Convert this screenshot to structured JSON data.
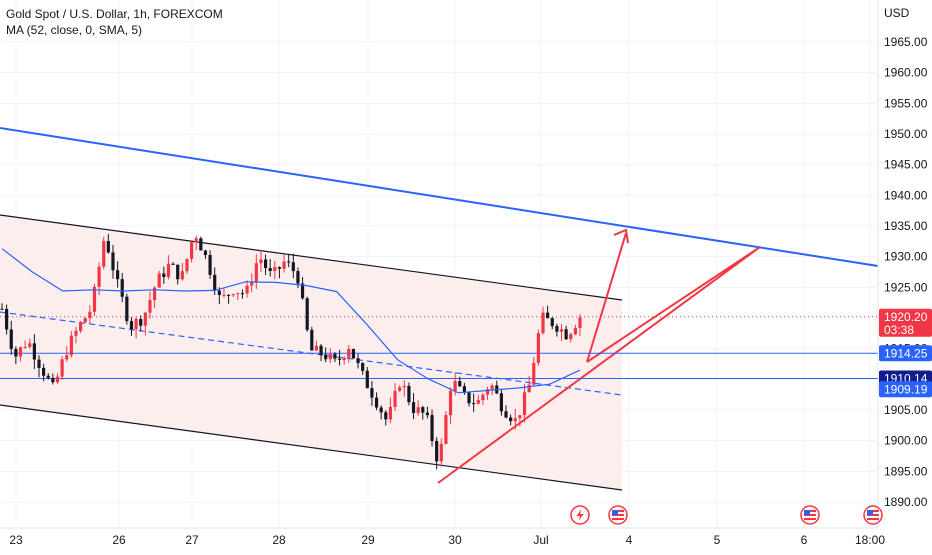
{
  "header": {
    "title": "Gold Spot / U.S. Dollar, 1h, FOREXCOM",
    "indicator": "MA (52, close, 0, SMA, 5)",
    "currency": "USD"
  },
  "colors": {
    "up": "#f23645",
    "down": "#131722",
    "ma": "#2962ff",
    "channel": "#131722",
    "channel_fill": "#fdeeee",
    "blue_line": "#2962ff",
    "annotation": "#f23645",
    "grid": "#f0f3fa",
    "hline": "#2962ff",
    "axis_text": "#131722"
  },
  "chart_data": {
    "type": "candlestick",
    "symbol": "XAUUSD",
    "interval": "1h",
    "x_ticks": [
      "23",
      "26",
      "27",
      "28",
      "29",
      "30",
      "Jul",
      "4",
      "5",
      "6",
      "18:00"
    ],
    "y_ticks": [
      1890,
      1895,
      1900,
      1905,
      1910,
      1915,
      1920,
      1925,
      1930,
      1935,
      1940,
      1945,
      1950,
      1955,
      1960,
      1965
    ],
    "ylim": [
      1887,
      1970
    ],
    "grid": true,
    "series": [
      {
        "name": "Gold Spot",
        "close_path": [
          1921.5,
          1913.7,
          1916.4,
          1912.2,
          1908.3,
          1914.7,
          1918.6,
          1921.7,
          1933.6,
          1925.3,
          1918.7,
          1920.1,
          1925.7,
          1928.6,
          1926.6,
          1934.2,
          1929.2,
          1922.7,
          1924.8,
          1923.9,
          1930.2,
          1926.6,
          1929.2,
          1927.1,
          1914.7,
          1914.2,
          1912.5,
          1915.5,
          1910.8,
          1907.1,
          1903.0,
          1909.9,
          1905.3,
          1904.1,
          1896.2,
          1910.0,
          1907.0,
          1906.1,
          1909.5,
          1905.4,
          1903.2,
          1908.5,
          1920.0,
          1919.1,
          1917.3,
          1920.3
        ]
      },
      {
        "name": "MA (52, close, 0, SMA, 5)",
        "values": [
          1931.3,
          1927.5,
          1924.4,
          1924.6,
          1924.4,
          1924.6,
          1924.4,
          1924.5,
          1925.9,
          1925.8,
          1925.3,
          1924.3,
          1918.9,
          1913.2,
          1910.1,
          1907.8,
          1908.2,
          1908.6,
          1909.2,
          1911.5
        ]
      }
    ],
    "horizontal_lines": [
      {
        "price": 1914.25,
        "label": "1914.25"
      },
      {
        "price": 1910.14,
        "label": "1910.14"
      },
      {
        "price": 1909.19,
        "label": "1909.19"
      }
    ],
    "current_price": {
      "value": "1920.20",
      "countdown": "03:38"
    }
  }
}
